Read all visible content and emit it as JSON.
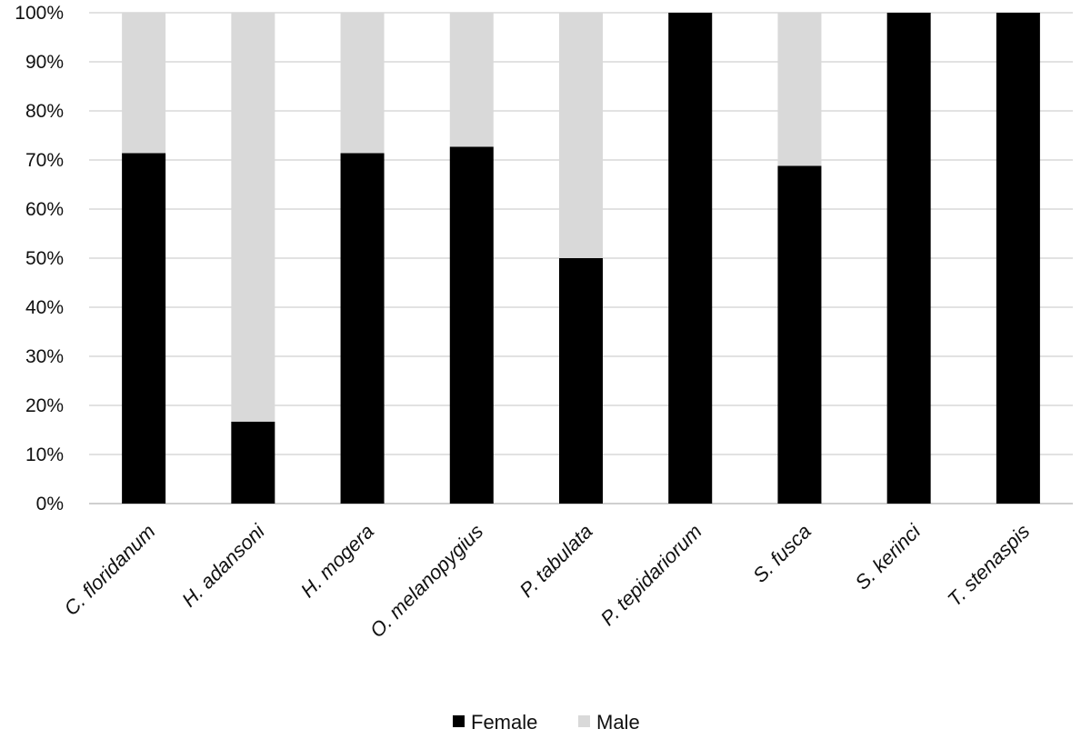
{
  "chart_data": {
    "type": "bar",
    "stacked": true,
    "percent_stacked": true,
    "categories": [
      "C. floridanum",
      "H. adansoni",
      "H. mogera",
      "O. melanopygius",
      "P. tabulata",
      "P. tepidariorum",
      "S. fusca",
      "S. kerinci",
      "T. stenaspis"
    ],
    "series": [
      {
        "name": "Female",
        "color": "#000000",
        "values": [
          71.4,
          16.7,
          71.4,
          72.7,
          50.0,
          100,
          68.8,
          100,
          100
        ]
      },
      {
        "name": "Male",
        "color": "#d9d9d9",
        "values": [
          28.6,
          83.3,
          28.6,
          27.3,
          50.0,
          0,
          31.2,
          0,
          0
        ]
      }
    ],
    "ylim": [
      0,
      100
    ],
    "yticks": [
      "0%",
      "10%",
      "20%",
      "30%",
      "40%",
      "50%",
      "60%",
      "70%",
      "80%",
      "90%",
      "100%"
    ],
    "grid": true,
    "legend_position": "bottom"
  }
}
